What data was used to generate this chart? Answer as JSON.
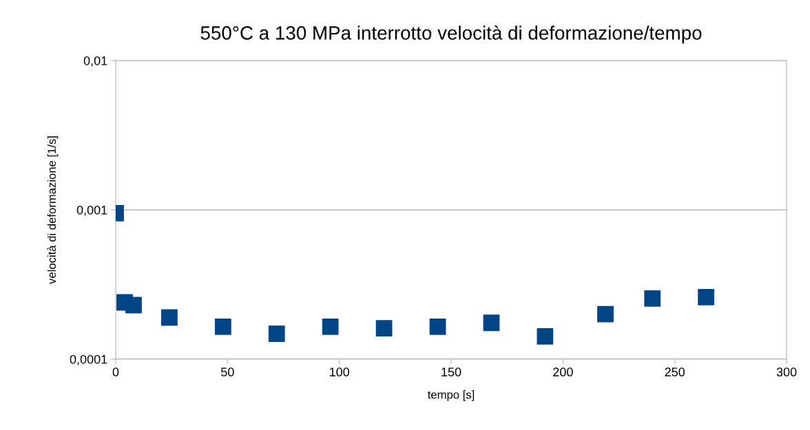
{
  "chart_data": {
    "type": "scatter",
    "title": "550°C a 130 MPa interrotto velocità di deformazione/tempo",
    "xlabel": "tempo [s]",
    "ylabel": "velocità di deformazione [1/s]",
    "x": [
      0,
      4,
      8,
      24,
      48,
      72,
      96,
      120,
      144,
      168,
      192,
      219,
      240,
      264
    ],
    "series": [
      {
        "color": "#004586",
        "values": [
          0.00095,
          0.00024,
          0.00023,
          0.00019,
          0.000165,
          0.000148,
          0.000165,
          0.000161,
          0.000165,
          0.000175,
          0.000142,
          0.0002,
          0.000255,
          0.00026
        ]
      }
    ],
    "log": "y",
    "xlim": [
      0,
      300
    ],
    "xticks": [
      0,
      50,
      100,
      150,
      200,
      250,
      300
    ],
    "ylim": [
      0.0001,
      0.01
    ],
    "yticks": [
      {
        "value": 0.0001,
        "label": "0,0001"
      },
      {
        "value": 0.001,
        "label": "0,001"
      },
      {
        "value": 0.01,
        "label": "0,01"
      }
    ],
    "grid": "y",
    "marker": "square",
    "legend": false
  }
}
